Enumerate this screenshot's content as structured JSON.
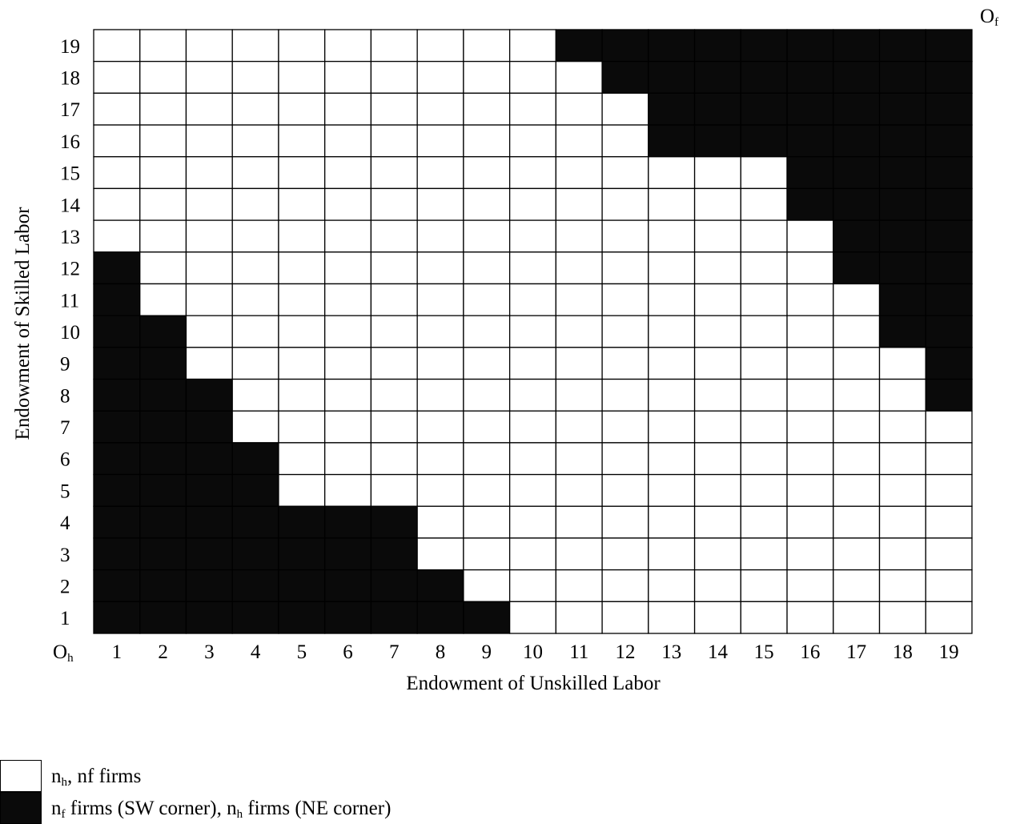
{
  "chart_data": {
    "type": "heatmap",
    "xlabel": "Endowment of Unskilled Labor",
    "ylabel": "Endowment of Skilled Labor",
    "x_categories": [
      1,
      2,
      3,
      4,
      5,
      6,
      7,
      8,
      9,
      10,
      11,
      12,
      13,
      14,
      15,
      16,
      17,
      18,
      19
    ],
    "y_categories": [
      1,
      2,
      3,
      4,
      5,
      6,
      7,
      8,
      9,
      10,
      11,
      12,
      13,
      14,
      15,
      16,
      17,
      18,
      19
    ],
    "origin_home": {
      "base": "O",
      "sub": "h"
    },
    "origin_foreign": {
      "base": "O",
      "sub": "f"
    },
    "grid": true,
    "colors": {
      "white_region": "#ffffff",
      "black_region": "#0a0a0a",
      "gridline": "#000000"
    },
    "value_key": {
      "0": "white region",
      "1": "black region"
    },
    "rows_top_to_bottom": [
      [
        0,
        0,
        0,
        0,
        0,
        0,
        0,
        0,
        0,
        0,
        1,
        1,
        1,
        1,
        1,
        1,
        1,
        1,
        1
      ],
      [
        0,
        0,
        0,
        0,
        0,
        0,
        0,
        0,
        0,
        0,
        0,
        1,
        1,
        1,
        1,
        1,
        1,
        1,
        1
      ],
      [
        0,
        0,
        0,
        0,
        0,
        0,
        0,
        0,
        0,
        0,
        0,
        0,
        1,
        1,
        1,
        1,
        1,
        1,
        1
      ],
      [
        0,
        0,
        0,
        0,
        0,
        0,
        0,
        0,
        0,
        0,
        0,
        0,
        1,
        1,
        1,
        1,
        1,
        1,
        1
      ],
      [
        0,
        0,
        0,
        0,
        0,
        0,
        0,
        0,
        0,
        0,
        0,
        0,
        0,
        0,
        0,
        1,
        1,
        1,
        1
      ],
      [
        0,
        0,
        0,
        0,
        0,
        0,
        0,
        0,
        0,
        0,
        0,
        0,
        0,
        0,
        0,
        1,
        1,
        1,
        1
      ],
      [
        0,
        0,
        0,
        0,
        0,
        0,
        0,
        0,
        0,
        0,
        0,
        0,
        0,
        0,
        0,
        0,
        1,
        1,
        1
      ],
      [
        1,
        0,
        0,
        0,
        0,
        0,
        0,
        0,
        0,
        0,
        0,
        0,
        0,
        0,
        0,
        0,
        1,
        1,
        1
      ],
      [
        1,
        0,
        0,
        0,
        0,
        0,
        0,
        0,
        0,
        0,
        0,
        0,
        0,
        0,
        0,
        0,
        0,
        1,
        1
      ],
      [
        1,
        1,
        0,
        0,
        0,
        0,
        0,
        0,
        0,
        0,
        0,
        0,
        0,
        0,
        0,
        0,
        0,
        1,
        1
      ],
      [
        1,
        1,
        0,
        0,
        0,
        0,
        0,
        0,
        0,
        0,
        0,
        0,
        0,
        0,
        0,
        0,
        0,
        0,
        1
      ],
      [
        1,
        1,
        1,
        0,
        0,
        0,
        0,
        0,
        0,
        0,
        0,
        0,
        0,
        0,
        0,
        0,
        0,
        0,
        1
      ],
      [
        1,
        1,
        1,
        0,
        0,
        0,
        0,
        0,
        0,
        0,
        0,
        0,
        0,
        0,
        0,
        0,
        0,
        0,
        0
      ],
      [
        1,
        1,
        1,
        1,
        0,
        0,
        0,
        0,
        0,
        0,
        0,
        0,
        0,
        0,
        0,
        0,
        0,
        0,
        0
      ],
      [
        1,
        1,
        1,
        1,
        0,
        0,
        0,
        0,
        0,
        0,
        0,
        0,
        0,
        0,
        0,
        0,
        0,
        0,
        0
      ],
      [
        1,
        1,
        1,
        1,
        1,
        1,
        1,
        0,
        0,
        0,
        0,
        0,
        0,
        0,
        0,
        0,
        0,
        0,
        0
      ],
      [
        1,
        1,
        1,
        1,
        1,
        1,
        1,
        0,
        0,
        0,
        0,
        0,
        0,
        0,
        0,
        0,
        0,
        0,
        0
      ],
      [
        1,
        1,
        1,
        1,
        1,
        1,
        1,
        1,
        0,
        0,
        0,
        0,
        0,
        0,
        0,
        0,
        0,
        0,
        0
      ],
      [
        1,
        1,
        1,
        1,
        1,
        1,
        1,
        1,
        1,
        0,
        0,
        0,
        0,
        0,
        0,
        0,
        0,
        0,
        0
      ]
    ],
    "legend": [
      {
        "swatch": "white",
        "parts": [
          {
            "t": "n"
          },
          {
            "t": "h",
            "sub": true
          },
          {
            "t": ", nf firms"
          }
        ]
      },
      {
        "swatch": "black",
        "parts": [
          {
            "t": "n"
          },
          {
            "t": "f",
            "sub": true
          },
          {
            "t": " firms (SW corner), n"
          },
          {
            "t": "h",
            "sub": true
          },
          {
            "t": " firms (NE corner)"
          }
        ]
      }
    ]
  }
}
